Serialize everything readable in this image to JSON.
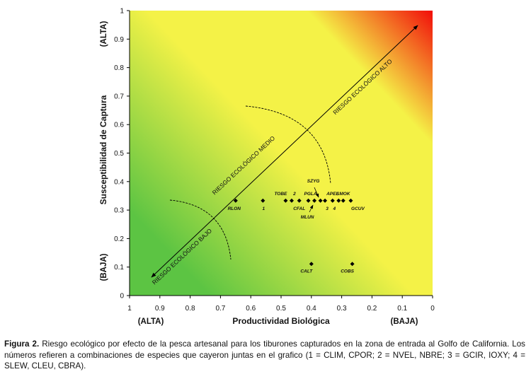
{
  "chart_data": {
    "type": "scatter",
    "title": "",
    "xlabel": "Productividad Biológica",
    "ylabel": "Susceptibilidad de Captura",
    "xlim": [
      1,
      0
    ],
    "ylim": [
      0,
      1
    ],
    "x_reversed": true,
    "x_ticks": [
      1,
      0.9,
      0.8,
      0.7,
      0.6,
      0.5,
      0.4,
      0.3,
      0.2,
      0.1,
      0
    ],
    "x_tick_labels": [
      "1",
      "0.9",
      "0.8",
      "0.7",
      "0.6",
      "0.5",
      "0.4",
      "0.3",
      "0.2",
      "0.1",
      "0"
    ],
    "y_ticks": [
      0,
      0.1,
      0.2,
      0.3,
      0.4,
      0.5,
      0.6,
      0.7,
      0.8,
      0.9,
      1
    ],
    "y_tick_labels": [
      "0",
      "0.1",
      "0.2",
      "0.3",
      "0.4",
      "0.5",
      "0.6",
      "0.7",
      "0.8",
      "0.9",
      "1"
    ],
    "x_end_labels": {
      "left": "(ALTA)",
      "right": "(BAJA)"
    },
    "y_end_labels": {
      "top": "(ALTA)",
      "bottom": "(BAJA)"
    },
    "background": {
      "low_color": "#5cc443",
      "mid_color": "#f4f247",
      "high_color": "#f20d0a"
    },
    "grid": false,
    "zone_labels": [
      "RIESGO ECOLÓGICO BAJO",
      "RIESGO ECOLÓGICO MEDIO",
      "RIESGO ECOLÓGICO ALTO"
    ],
    "points": [
      {
        "label": "RLON",
        "x": 0.65,
        "y": 0.333
      },
      {
        "label": "1",
        "x": 0.56,
        "y": 0.333
      },
      {
        "label": "TOBE",
        "x": 0.485,
        "y": 0.333
      },
      {
        "label": "2",
        "x": 0.465,
        "y": 0.333
      },
      {
        "label": "CFAL",
        "x": 0.44,
        "y": 0.333
      },
      {
        "label": "PGLA",
        "x": 0.41,
        "y": 0.333
      },
      {
        "label": "MLUN",
        "x": 0.39,
        "y": 0.333
      },
      {
        "label": "SZYG",
        "x": 0.37,
        "y": 0.333
      },
      {
        "label": "3",
        "x": 0.355,
        "y": 0.333
      },
      {
        "label": "APEL",
        "x": 0.33,
        "y": 0.333
      },
      {
        "label": "4",
        "x": 0.31,
        "y": 0.333
      },
      {
        "label": "SMOK",
        "x": 0.295,
        "y": 0.333
      },
      {
        "label": "GCUV",
        "x": 0.27,
        "y": 0.333
      },
      {
        "label": "CALT",
        "x": 0.4,
        "y": 0.111
      },
      {
        "label": "COBS",
        "x": 0.265,
        "y": 0.111
      }
    ]
  },
  "caption": {
    "label": "Figura 2.",
    "text": "Riesgo ecológico por efecto de la pesca artesanal para los tiburones capturados en la zona de entrada al Golfo de California. Los números refieren a combinaciones de especies que cayeron juntas en el grafico (1 = CLIM, CPOR; 2 = NVEL, NBRE; 3 = GCIR, IOXY; 4 = SLEW, CLEU, CBRA)."
  }
}
